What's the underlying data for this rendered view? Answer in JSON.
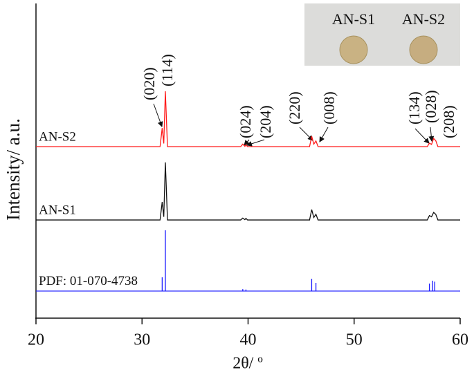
{
  "chart_data": {
    "type": "line",
    "xlabel": "2θ/ º",
    "ylabel": "Intensity/ a.u.",
    "xlim": [
      20,
      60
    ],
    "xticks": [
      20,
      30,
      40,
      50,
      60
    ],
    "ylim": [
      0,
      100
    ],
    "series": [
      {
        "name": "AN-S2",
        "color": "#ff1a1a",
        "x": [
          20,
          28.4,
          31.7,
          31.9,
          32.05,
          32.2,
          32.4,
          39.3,
          39.5,
          39.7,
          39.8,
          39.95,
          45.8,
          46.0,
          46.2,
          46.4,
          46.6,
          56.9,
          57.1,
          57.3,
          57.5,
          57.7,
          57.9,
          60
        ],
        "values": [
          54.5,
          54.5,
          54.5,
          60.4,
          55.5,
          72.1,
          54.5,
          54.5,
          55.3,
          54.6,
          55.1,
          54.5,
          54.5,
          57.8,
          55.3,
          56.3,
          54.5,
          54.5,
          55.6,
          55.2,
          57.1,
          56.4,
          54.5,
          54.5
        ]
      },
      {
        "name": "AN-S1",
        "color": "#111111",
        "x": [
          20,
          28.4,
          31.7,
          31.9,
          32.05,
          32.2,
          32.4,
          39.3,
          39.5,
          39.7,
          39.8,
          39.95,
          45.8,
          46.0,
          46.2,
          46.4,
          46.6,
          56.9,
          57.1,
          57.3,
          57.5,
          57.7,
          57.9,
          60
        ],
        "values": [
          31.2,
          31.2,
          31.2,
          36.9,
          32.2,
          49.5,
          31.2,
          31.2,
          31.8,
          31.3,
          31.7,
          31.2,
          31.2,
          34.5,
          32.0,
          33.0,
          31.2,
          31.2,
          32.6,
          32.2,
          33.6,
          33.0,
          31.2,
          31.2
        ]
      },
      {
        "name": "PDF: 01-070-4738",
        "color": "#1a1aff",
        "x": [
          20,
          31.9,
          31.9,
          31.9,
          32.2,
          32.2,
          32.2,
          39.5,
          39.5,
          39.5,
          39.8,
          39.8,
          39.8,
          46.0,
          46.0,
          46.0,
          46.4,
          46.4,
          46.4,
          57.1,
          57.1,
          57.1,
          57.4,
          57.4,
          57.4,
          57.6,
          57.6,
          57.6,
          60
        ],
        "values": [
          8.6,
          8.6,
          13,
          8.6,
          8.6,
          27.9,
          8.6,
          8.6,
          9.2,
          8.6,
          8.6,
          9.1,
          8.6,
          8.6,
          12.5,
          8.6,
          8.6,
          11.2,
          8.6,
          8.6,
          11,
          8.6,
          8.6,
          11.9,
          8.6,
          8.6,
          11.6,
          8.6,
          8.6
        ]
      }
    ],
    "annotations": [
      "(020)",
      "(114)",
      "(024)",
      "(204)",
      "(220)",
      "(008)",
      "(134)",
      "(028)",
      "(208)"
    ],
    "inset_labels": [
      "AN-S1",
      "AN-S2"
    ]
  }
}
